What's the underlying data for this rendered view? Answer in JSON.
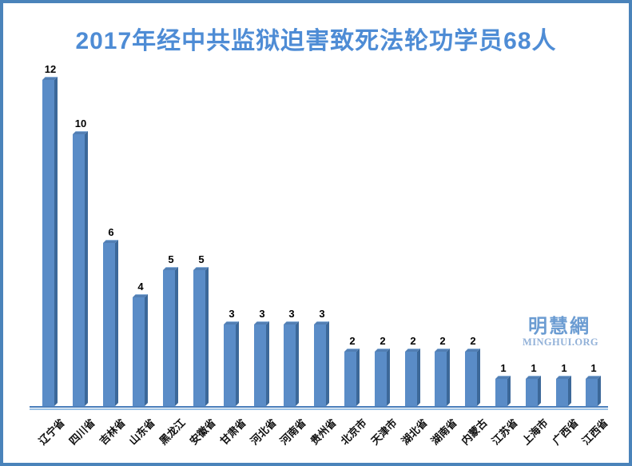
{
  "frame": {
    "border_color": "#4a83ba",
    "background": "#ffffff"
  },
  "chart_data": {
    "type": "bar",
    "title": "2017年经中共监狱迫害致死法轮功学员68人",
    "title_color": "#4e8cd5",
    "total_shown_in_title": 68,
    "categories": [
      "辽宁省",
      "四川省",
      "吉林省",
      "山东省",
      "黑龙江",
      "安徽省",
      "甘肃省",
      "河北省",
      "河南省",
      "贵州省",
      "北京市",
      "天津市",
      "湖北省",
      "湖南省",
      "内蒙古",
      "江苏省",
      "上海市",
      "广西省",
      "江西省"
    ],
    "values": [
      12,
      10,
      6,
      4,
      5,
      5,
      3,
      3,
      3,
      3,
      2,
      2,
      2,
      2,
      2,
      1,
      1,
      1,
      1
    ],
    "xlabel": "",
    "ylabel": "",
    "ylim": [
      0,
      12
    ],
    "grid": false,
    "legend": false,
    "bar_style": "3d-oblique",
    "value_labels_shown": true,
    "bar_colors": {
      "front": "#5a8cc7",
      "side": "#3c6899",
      "top": "#527fb4",
      "top_highlight": "#8fb3da"
    },
    "axis_colors": {
      "main": "#4a7ebb",
      "shadow": "#9cc2e5"
    },
    "label_color": "#111111",
    "value_label_color": "#000000"
  },
  "watermark": {
    "cjk": "明慧網",
    "latin": "MINGHUI.ORG",
    "cjk_color": "#6b9cd2",
    "latin_color": "#92b1d8"
  }
}
